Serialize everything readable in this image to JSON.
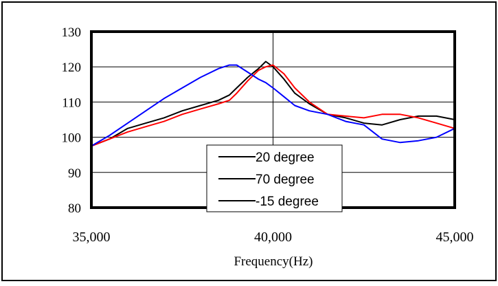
{
  "chart_data": {
    "type": "line",
    "title": "",
    "xlabel": "Frequency(Hz)",
    "ylabel": "",
    "xlim": [
      35000,
      45000
    ],
    "ylim": [
      80,
      130
    ],
    "x_ticks": [
      35000,
      40000,
      45000
    ],
    "x_tick_labels": [
      "35,000",
      "40,000",
      "45,000"
    ],
    "y_ticks": [
      80,
      90,
      100,
      110,
      120,
      130
    ],
    "y_tick_labels": [
      "80",
      "90",
      "100",
      "110",
      "120",
      "130"
    ],
    "grid": "horizontal lines at y ticks, vertical line at 40,000",
    "legend_position": "center-bottom",
    "series": [
      {
        "name": "20 degree",
        "color": "#000000",
        "x": [
          35000,
          35500,
          36000,
          36500,
          37000,
          37500,
          38000,
          38500,
          38800,
          39000,
          39300,
          39600,
          39800,
          40000,
          40300,
          40600,
          41000,
          41500,
          42000,
          42500,
          43000,
          43500,
          44000,
          44500,
          45000
        ],
        "y": [
          97.5,
          99.5,
          102.5,
          104,
          105.5,
          107.5,
          109,
          110.5,
          112,
          114,
          117,
          119.5,
          121.5,
          120,
          116.5,
          112.5,
          109.5,
          106.5,
          105.5,
          104,
          103.5,
          105,
          106,
          106,
          105
        ]
      },
      {
        "name": "70 degree",
        "color": "#ff0000",
        "x": [
          35000,
          35500,
          36000,
          36500,
          37000,
          37500,
          38000,
          38500,
          38800,
          39000,
          39300,
          39600,
          39800,
          40000,
          40300,
          40600,
          41000,
          41500,
          42000,
          42500,
          43000,
          43500,
          44000,
          44500,
          45000
        ],
        "y": [
          97.5,
          99.5,
          101.5,
          103,
          104.5,
          106.5,
          108,
          109.5,
          110.5,
          112.5,
          116,
          119,
          120,
          120.5,
          118,
          114,
          110,
          106.5,
          106,
          105.5,
          106.5,
          106.5,
          105.5,
          104,
          102.5
        ]
      },
      {
        "name": "-15 degree",
        "color": "#0000ff",
        "x": [
          35000,
          35500,
          36000,
          36500,
          37000,
          37500,
          38000,
          38500,
          38800,
          39000,
          39300,
          39600,
          39800,
          40000,
          40300,
          40600,
          41000,
          41500,
          42000,
          42500,
          43000,
          43500,
          44000,
          44500,
          45000
        ],
        "y": [
          97.5,
          100.5,
          104,
          107.5,
          111,
          114,
          117,
          119.5,
          120.5,
          120.5,
          118.5,
          116.5,
          115.5,
          114,
          111.5,
          109,
          107.5,
          106.5,
          104.5,
          103.5,
          99.5,
          98.5,
          99,
          100,
          102.5
        ]
      }
    ]
  }
}
